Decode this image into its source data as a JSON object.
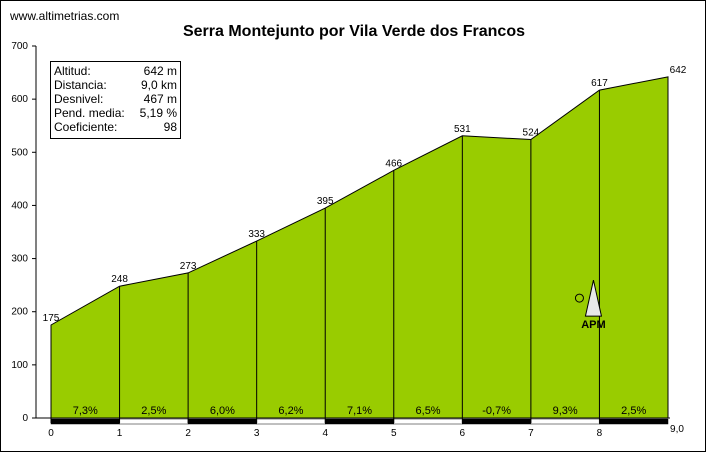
{
  "site": "www.altimetrias.com",
  "chart_data": {
    "type": "area",
    "title": "Serra Montejunto por Vila Verde dos Francos",
    "xlabel": "",
    "ylabel": "",
    "x_ticks": [
      "0",
      "1",
      "2",
      "3",
      "4",
      "5",
      "6",
      "7",
      "8"
    ],
    "x_end_label": "9,0",
    "xlim": [
      0,
      9
    ],
    "y_ticks": [
      "0",
      "100",
      "200",
      "300",
      "400",
      "500",
      "600",
      "700"
    ],
    "ylim": [
      0,
      700
    ],
    "x": [
      0,
      1,
      2,
      3,
      4,
      5,
      6,
      7,
      8,
      9
    ],
    "elevation": [
      175,
      248,
      273,
      333,
      395,
      466,
      531,
      524,
      617,
      642
    ],
    "point_labels": [
      "175",
      "248",
      "273",
      "333",
      "395",
      "466",
      "531",
      "524",
      "617",
      "642"
    ],
    "segment_gradients": [
      "7,3%",
      "2,5%",
      "6,0%",
      "6,2%",
      "7,1%",
      "6,5%",
      "-0,7%",
      "9,3%",
      "2,5%"
    ],
    "fill_color": "#99cc00",
    "marker": {
      "label": "APM",
      "x": 8
    },
    "stats": [
      {
        "label": "Altitud:",
        "value": "642 m"
      },
      {
        "label": "Distancia:",
        "value": "9,0 km"
      },
      {
        "label": "Desnivel:",
        "value": "467 m"
      },
      {
        "label": "Pend. media:",
        "value": "5,19 %"
      },
      {
        "label": "Coeficiente:",
        "value": "98"
      }
    ]
  }
}
